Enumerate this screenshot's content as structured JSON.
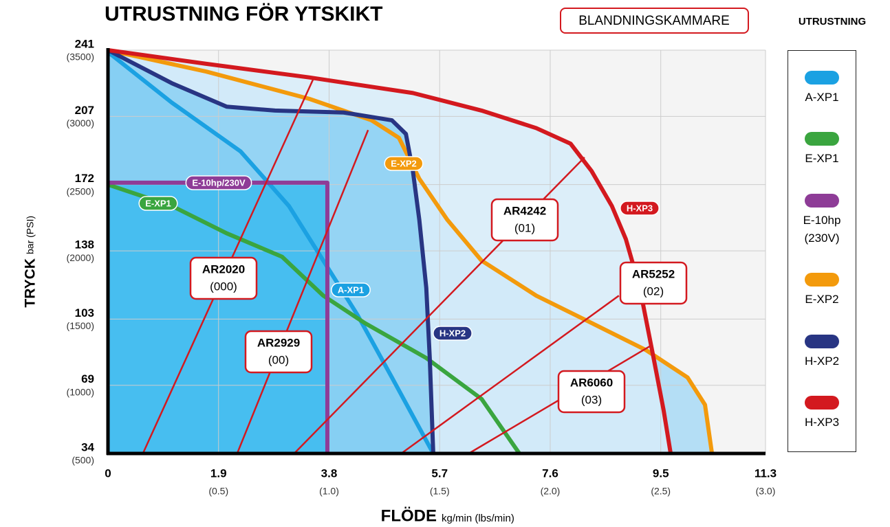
{
  "chart_data": {
    "type": "line",
    "title": "UTRUSTNING FÖR YTSKIKT",
    "mixing_title": "BLANDNINGSKAMMARE",
    "legend_title": "UTRUSTNING",
    "y_title": "TRYCK",
    "y_unit": "bar (PSI)",
    "x_title": "FLÖDE",
    "x_unit": "kg/min (lbs/min)",
    "xlim": [
      0,
      11.3
    ],
    "ylim": [
      34,
      241
    ],
    "xticks": [
      0,
      1.9,
      3.8,
      5.7,
      7.6,
      9.5,
      11.3
    ],
    "xticks_lbs": [
      null,
      "(0.5)",
      "(1.0)",
      "(1.5)",
      "(2.0)",
      "(2.5)",
      "(3.0)"
    ],
    "yticks": [
      34,
      69,
      103,
      138,
      172,
      207,
      241
    ],
    "yticks_psi": [
      "(500)",
      "(1000)",
      "(1500)",
      "(2000)",
      "(2500)",
      "(3000)",
      "(3500)"
    ],
    "grid": true,
    "series": [
      {
        "name": "A-XP1",
        "label": "A-XP1",
        "color": "#1ba1e2",
        "fill": "#5cc4ef",
        "x": [
          0,
          1.1,
          2.28,
          3.11,
          3.7,
          4.29,
          4.88,
          5.59
        ],
        "values": [
          240,
          214,
          189,
          161,
          133,
          105,
          73,
          34
        ]
      },
      {
        "name": "E-XP1",
        "label": "E-XP1",
        "color": "#3aa53f",
        "fill": null,
        "x": [
          0,
          1.1,
          2.04,
          2.99,
          3.7,
          4.41,
          5.47,
          6.42,
          7.07
        ],
        "values": [
          172,
          161,
          147,
          135,
          115,
          101,
          83,
          62,
          34
        ]
      },
      {
        "name": "E-10hp (230V)",
        "label": "E-10hp/230V",
        "color": "#8e3c97",
        "fill": "#3cbbee",
        "x": [
          0,
          3.77,
          3.77
        ],
        "values": [
          173,
          173,
          34
        ]
      },
      {
        "name": "E-XP2",
        "label": "E-XP2",
        "color": "#f39a0c",
        "fill": "#a8d9f5",
        "x": [
          0,
          1.69,
          3.46,
          4.53,
          5.0,
          5.35,
          5.83,
          6.42,
          7.36,
          8.31,
          9.25,
          9.96,
          10.26,
          10.38
        ],
        "values": [
          241,
          230,
          216,
          205,
          196,
          175,
          154,
          133,
          115,
          101,
          87,
          73,
          59,
          34
        ]
      },
      {
        "name": "H-XP2",
        "label": "H-XP2",
        "color": "#283583",
        "fill": "#8bd0f3",
        "x": [
          0,
          1.1,
          2.04,
          2.87,
          4.05,
          4.88,
          5.12,
          5.24,
          5.35,
          5.47,
          5.53,
          5.59
        ],
        "values": [
          241,
          224,
          212,
          210,
          209,
          205,
          198,
          179,
          154,
          119,
          83,
          34
        ]
      },
      {
        "name": "H-XP3",
        "label": "H-XP3",
        "color": "#d3191f",
        "fill": "#d7ecf9",
        "x": [
          0,
          1.69,
          3.46,
          5.24,
          6.42,
          7.36,
          7.95,
          8.31,
          8.66,
          8.9,
          9.14,
          9.37,
          9.55,
          9.67
        ],
        "values": [
          241,
          234,
          227,
          219,
          210,
          201,
          193,
          179,
          161,
          144,
          119,
          84,
          56,
          34
        ]
      }
    ],
    "mixing_chambers": [
      {
        "label": "AR2020",
        "code": "(000)",
        "x": [
          0.6,
          3.54
        ],
        "values": [
          34,
          227
        ]
      },
      {
        "label": "AR2929",
        "code": "(00)",
        "x": [
          2.22,
          4.47
        ],
        "values": [
          34,
          200
        ]
      },
      {
        "label": "AR4242",
        "code": "(01)",
        "x": [
          3.2,
          8.19
        ],
        "values": [
          34,
          186
        ]
      },
      {
        "label": "AR5252",
        "code": "(02)",
        "x": [
          5.04,
          8.78
        ],
        "values": [
          34,
          115
        ]
      },
      {
        "label": "AR6060",
        "code": "(03)",
        "x": [
          6.2,
          9.31
        ],
        "values": [
          34,
          89
        ]
      }
    ],
    "chamber_color": "#d3191f"
  }
}
